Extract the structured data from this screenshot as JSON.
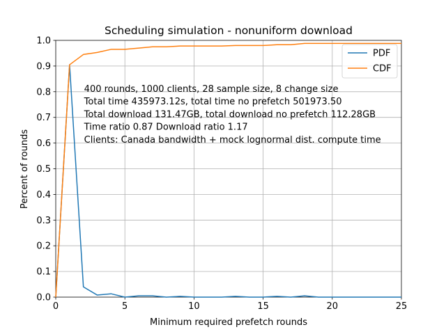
{
  "chart_data": {
    "type": "line",
    "title": "Scheduling simulation - nonuniform download",
    "xlabel": "Minimum required prefetch rounds",
    "ylabel": "Percent of rounds",
    "xlim": [
      0,
      25
    ],
    "ylim": [
      0,
      1.0
    ],
    "xticks": [
      0,
      5,
      10,
      15,
      20,
      25
    ],
    "yticks": [
      0.0,
      0.1,
      0.2,
      0.3,
      0.4,
      0.5,
      0.6,
      0.7,
      0.8,
      0.9,
      1.0
    ],
    "xtick_labels": [
      "0",
      "5",
      "10",
      "15",
      "20",
      "25"
    ],
    "ytick_labels": [
      "0.0",
      "0.1",
      "0.2",
      "0.3",
      "0.4",
      "0.5",
      "0.6",
      "0.7",
      "0.8",
      "0.9",
      "1.0"
    ],
    "grid": true,
    "legend_position": "top-right",
    "x": [
      0,
      1,
      2,
      3,
      4,
      5,
      6,
      7,
      8,
      9,
      10,
      11,
      12,
      13,
      14,
      15,
      16,
      17,
      18,
      19,
      20,
      21,
      22,
      23,
      24,
      25
    ],
    "series": [
      {
        "name": "PDF",
        "color": "#1f77b4",
        "values": [
          0.0,
          0.905,
          0.04,
          0.008,
          0.013,
          0.0,
          0.005,
          0.005,
          0.0,
          0.003,
          0.0,
          0.0,
          0.0,
          0.003,
          0.0,
          0.0,
          0.003,
          0.0,
          0.005,
          0.0,
          0.0,
          0.0,
          0.0,
          0.0,
          0.0,
          0.0
        ]
      },
      {
        "name": "CDF",
        "color": "#ff7f0e",
        "values": [
          0.0,
          0.905,
          0.945,
          0.953,
          0.965,
          0.965,
          0.97,
          0.975,
          0.975,
          0.978,
          0.978,
          0.978,
          0.978,
          0.98,
          0.98,
          0.98,
          0.983,
          0.983,
          0.988,
          0.988,
          0.988,
          0.988,
          0.988,
          0.988,
          0.988,
          0.988
        ]
      }
    ],
    "annotation_lines": [
      "400 rounds, 1000 clients, 28 sample size, 8 change size",
      "Total time 435973.12s, total time no prefetch 501973.50",
      "Total download 131.47GB, total download no prefetch 112.28GB",
      "Time ratio 0.87 Download ratio 1.17",
      "Clients: Canada bandwidth + mock lognormal dist. compute time"
    ]
  }
}
